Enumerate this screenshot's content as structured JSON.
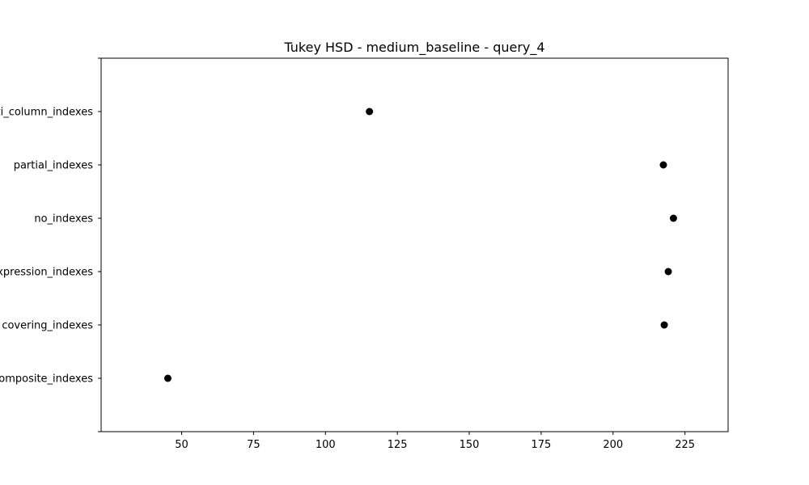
{
  "chart_data": {
    "type": "scatter",
    "title": "Tukey HSD - medium_baseline - query_4",
    "xlabel": "",
    "ylabel": "",
    "xlim": [
      22,
      240
    ],
    "xticks": [
      50,
      75,
      100,
      125,
      150,
      175,
      200,
      225
    ],
    "categories": [
      "multi_column_indexes",
      "partial_indexes",
      "no_indexes",
      "expression_indexes",
      "covering_indexes",
      "composite_indexes"
    ],
    "values": [
      115.3,
      217.5,
      221.0,
      219.2,
      217.8,
      45.2
    ],
    "marker_color": "#000000",
    "grid": false,
    "legend": "none"
  }
}
